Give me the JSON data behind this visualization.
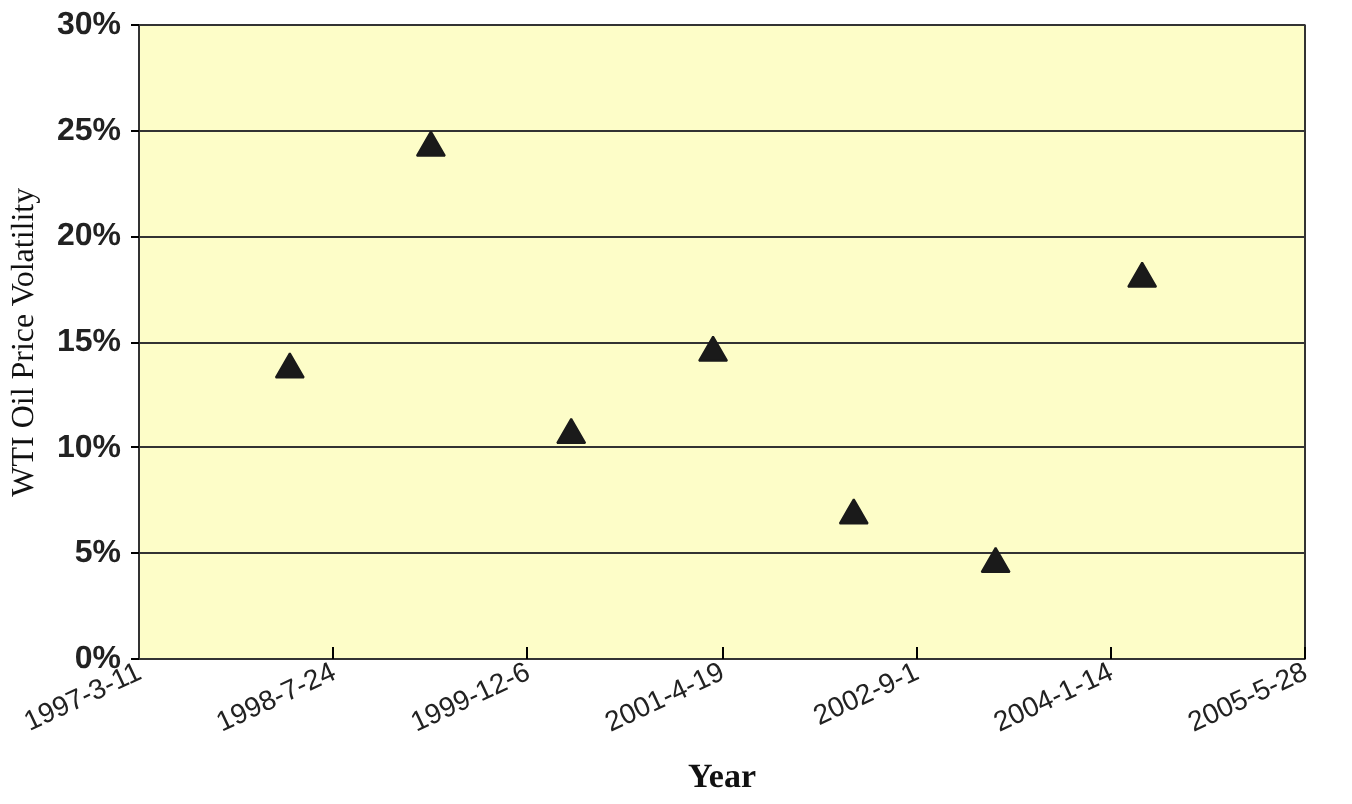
{
  "chart_data": {
    "type": "scatter",
    "xlabel": "Year",
    "ylabel": "WTI Oil Price Volatility",
    "x": [
      "1998-04-03",
      "1999-04-01",
      "2000-03-27",
      "2001-03-27",
      "2002-03-24",
      "2003-03-24",
      "2004-04-04"
    ],
    "series": [
      {
        "color": "#1a1a1a",
        "values": [
          13.7,
          24.2,
          10.6,
          14.5,
          6.8,
          4.5,
          18.0
        ]
      }
    ],
    "marker": "triangle",
    "grid": "y",
    "xlim": [
      "1997-03-11",
      "2005-05-28"
    ],
    "xticks": [
      {
        "value": "1997-03-11",
        "label": "1997-3-11"
      },
      {
        "value": "1998-07-24",
        "label": "1998-7-24"
      },
      {
        "value": "1999-12-06",
        "label": "1999-12-6"
      },
      {
        "value": "2001-04-19",
        "label": "2001-4-19"
      },
      {
        "value": "2002-09-01",
        "label": "2002-9-1"
      },
      {
        "value": "2004-01-14",
        "label": "2004-1-14"
      },
      {
        "value": "2005-05-28",
        "label": "2005-5-28"
      }
    ],
    "ylim": [
      0,
      30
    ],
    "yticks": [
      {
        "value": 0,
        "label": "0%"
      },
      {
        "value": 5,
        "label": "5%"
      },
      {
        "value": 10,
        "label": "10%"
      },
      {
        "value": 15,
        "label": "15%"
      },
      {
        "value": 20,
        "label": "20%"
      },
      {
        "value": 25,
        "label": "25%"
      },
      {
        "value": 30,
        "label": "30%"
      }
    ]
  }
}
